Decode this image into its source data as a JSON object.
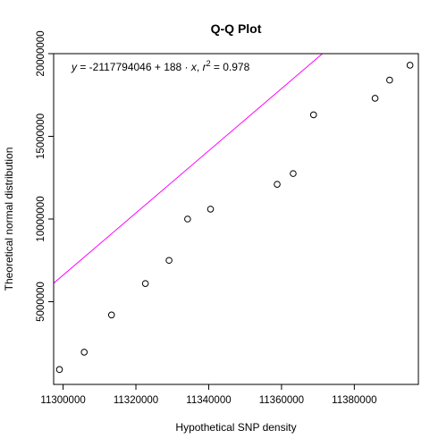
{
  "chart_data": {
    "type": "scatter",
    "title": "Q-Q Plot",
    "xlabel": "Hypothetical SNP density",
    "ylabel": "Theoretical normal distribution",
    "xlim": [
      11297400,
      11397600
    ],
    "ylim": [
      0,
      20000000
    ],
    "x_ticks": [
      11300000,
      11320000,
      11340000,
      11360000,
      11380000
    ],
    "x_tick_labels": [
      "11300000",
      "11320000",
      "11340000",
      "11360000",
      "11380000"
    ],
    "y_ticks": [
      5000000,
      10000000,
      15000000,
      20000000
    ],
    "y_tick_labels": [
      "5000000",
      "10000000",
      "15000000",
      "20000000"
    ],
    "points": [
      {
        "x": 11299000,
        "y": 900000
      },
      {
        "x": 11305800,
        "y": 1950000
      },
      {
        "x": 11313300,
        "y": 4200000
      },
      {
        "x": 11322600,
        "y": 6100000
      },
      {
        "x": 11329100,
        "y": 7500000
      },
      {
        "x": 11334200,
        "y": 10000000
      },
      {
        "x": 11340500,
        "y": 10600000
      },
      {
        "x": 11358800,
        "y": 12100000
      },
      {
        "x": 11363200,
        "y": 12750000
      },
      {
        "x": 11368800,
        "y": 16300000
      },
      {
        "x": 11385700,
        "y": 17300000
      },
      {
        "x": 11389700,
        "y": 18400000
      },
      {
        "x": 11395300,
        "y": 19300000
      }
    ],
    "regression": {
      "intercept": -2117794046,
      "slope": 188,
      "r2": 0.978
    },
    "equation": {
      "y_var": "y",
      "intercept_text": " = -2117794046 + 188 · ",
      "x_var": "x",
      "sep_text": ",  ",
      "r_var": "r",
      "r_exp": "2",
      "r2_text": " = 0.978"
    },
    "fit_line_color": "#ff00ff",
    "point_color": "#000000",
    "grid": false
  }
}
